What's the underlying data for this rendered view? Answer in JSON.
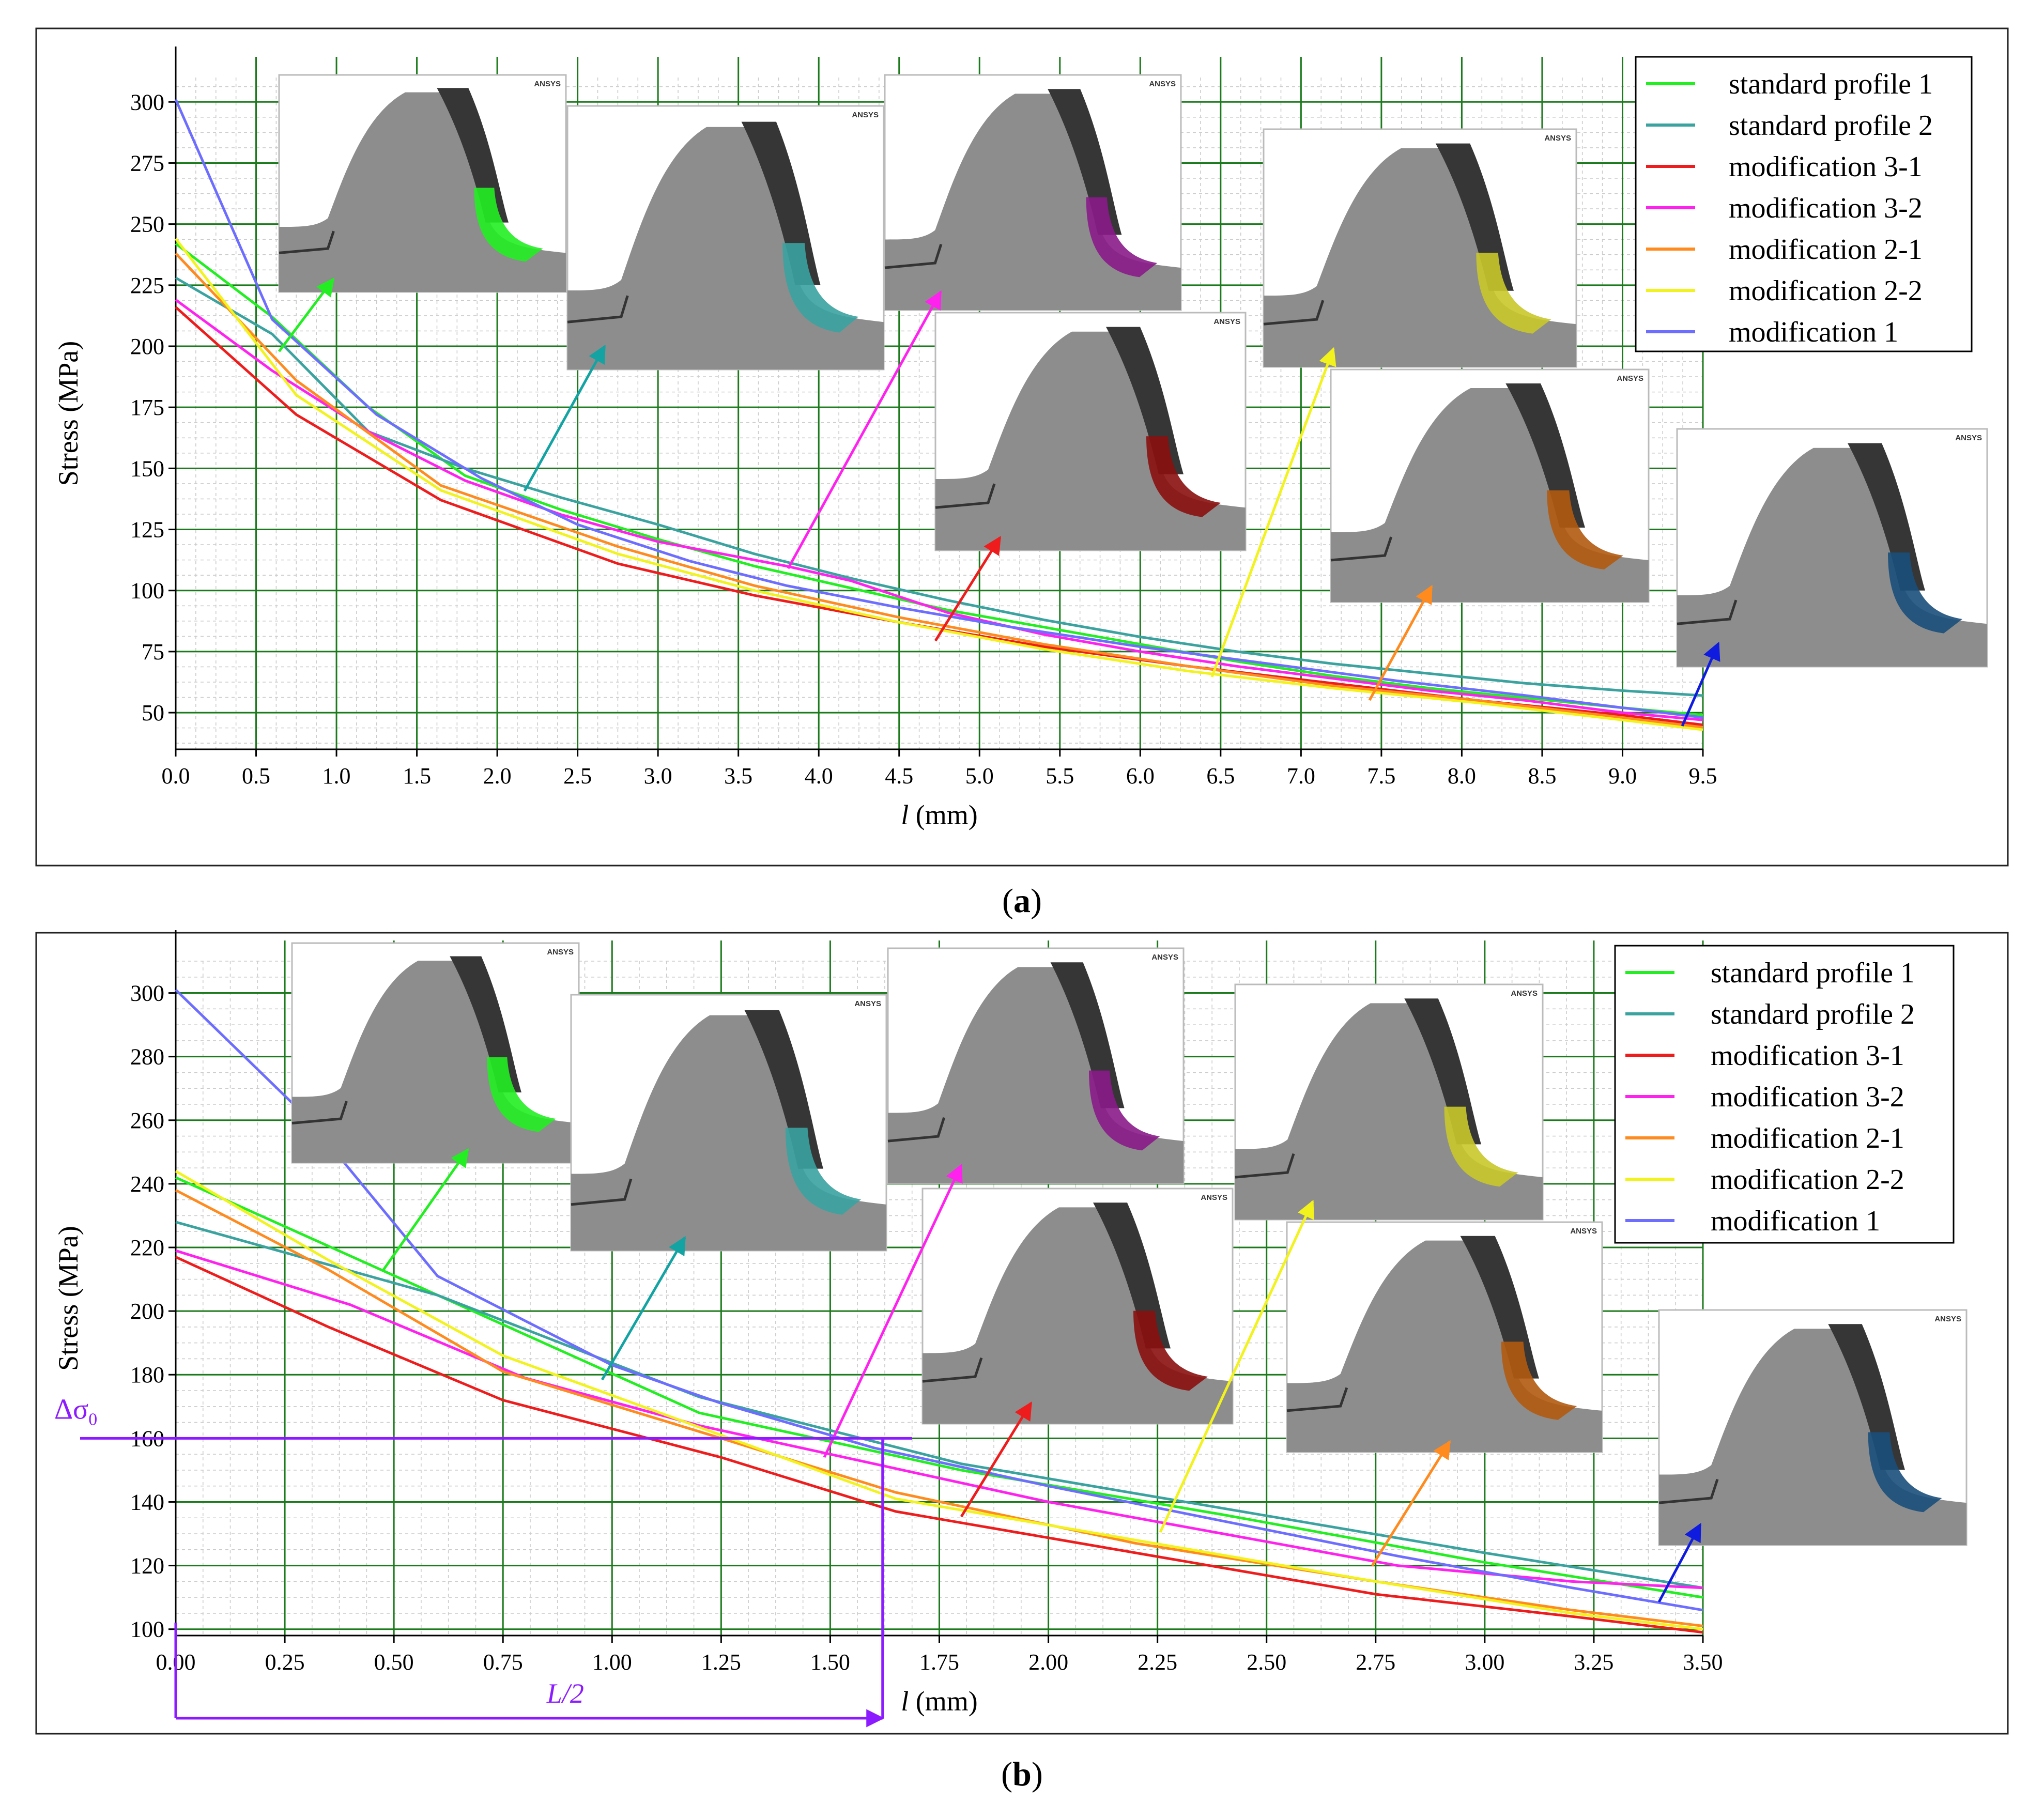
{
  "colors": {
    "standard_profile_1": "#22ee22",
    "standard_profile_2": "#3aa3a0",
    "modification_3_1": "#ee1c1c",
    "modification_3_2": "#ff22ee",
    "modification_2_1": "#ff8a1e",
    "modification_2_2": "#f2f21c",
    "modification_1": "#6d6dff",
    "grid": "#1b7a1b",
    "annotation": "#8c1cff",
    "arrow_standard_profile_2": "#13a3a3"
  },
  "inset_label": "ANSYS",
  "chart_data": [
    {
      "panel": "(a)",
      "panel_letter": "a",
      "type": "line",
      "xlabel_var": "l",
      "xlabel_unit": " (mm)",
      "ylabel": "Stress (MPa)",
      "xlim": [
        0,
        9.5
      ],
      "ylim": [
        35,
        310
      ],
      "xticks": [
        "0.0",
        "0.5",
        "1.0",
        "1.5",
        "2.0",
        "2.5",
        "3.0",
        "3.5",
        "4.0",
        "4.5",
        "5.0",
        "5.5",
        "6.0",
        "6.5",
        "7.0",
        "7.5",
        "8.0",
        "8.5",
        "9.0",
        "9.5"
      ],
      "yticks": [
        50,
        75,
        100,
        125,
        150,
        175,
        200,
        225,
        250,
        275,
        300
      ],
      "legend": [
        "standard profile 1",
        "standard profile 2",
        "modification 3-1",
        "modification 3-2",
        "modification 2-1",
        "modification 2-2",
        "modification 1"
      ],
      "series": [
        {
          "name": "standard profile 1",
          "key": "standard_profile_1",
          "x": [
            0,
            0.6,
            1.2,
            1.8,
            2.4,
            3.0,
            3.6,
            4.2,
            4.8,
            5.4,
            6.0,
            6.6,
            7.2,
            7.8,
            8.4,
            9.0,
            9.5
          ],
          "y": [
            242,
            212,
            175,
            147,
            133,
            121,
            110,
            101,
            92,
            85,
            78,
            71,
            65,
            60,
            56,
            52,
            49
          ]
        },
        {
          "name": "standard profile 2",
          "key": "standard_profile_2",
          "x": [
            0,
            0.6,
            1.2,
            1.8,
            2.4,
            3.0,
            3.6,
            4.2,
            4.8,
            5.4,
            6.0,
            6.6,
            7.2,
            7.8,
            8.4,
            9.0,
            9.5
          ],
          "y": [
            228,
            205,
            165,
            150,
            138,
            127,
            115,
            105,
            96,
            88,
            81,
            75,
            70,
            66,
            62,
            59,
            57
          ]
        },
        {
          "name": "modification 3-1",
          "key": "modification_3_1",
          "x": [
            0,
            0.75,
            1.65,
            2.75,
            3.6,
            4.5,
            5.4,
            6.3,
            7.2,
            8.1,
            9.0,
            9.5
          ],
          "y": [
            216,
            172,
            137,
            111,
            98,
            87,
            77,
            69,
            62,
            55,
            49,
            45
          ]
        },
        {
          "name": "modification 3-2",
          "key": "modification_3_2",
          "x": [
            0,
            0.6,
            1.2,
            1.8,
            2.4,
            3.0,
            3.8,
            4.2,
            4.8,
            5.4,
            6.0,
            6.6,
            7.2,
            7.8,
            8.4,
            9.0,
            9.5
          ],
          "y": [
            219,
            190,
            165,
            145,
            131,
            120,
            110,
            104,
            91,
            82,
            75,
            69,
            64,
            59,
            55,
            50,
            47
          ]
        },
        {
          "name": "modification 2-1",
          "key": "modification_2_1",
          "x": [
            0,
            0.75,
            1.65,
            2.75,
            3.6,
            4.5,
            5.4,
            6.3,
            7.2,
            8.1,
            9.0,
            9.5
          ],
          "y": [
            238,
            186,
            143,
            118,
            102,
            89,
            78,
            69,
            61,
            55,
            48,
            44
          ]
        },
        {
          "name": "modification 2-2",
          "key": "modification_2_2",
          "x": [
            0,
            0.75,
            1.65,
            2.75,
            3.6,
            4.5,
            5.4,
            6.3,
            7.2,
            8.1,
            9.0,
            9.5
          ],
          "y": [
            244,
            180,
            141,
            115,
            100,
            87,
            76,
            67,
            60,
            54,
            47,
            43
          ]
        },
        {
          "name": "modification 1",
          "key": "modification_1",
          "x": [
            0,
            0.6,
            1.25,
            1.9,
            2.5,
            3.2,
            3.8,
            4.5,
            5.2,
            6.0,
            6.8,
            7.6,
            8.4,
            9.0,
            9.5
          ],
          "y": [
            301,
            211,
            172,
            146,
            127,
            112,
            102,
            93,
            85,
            77,
            70,
            63,
            57,
            52,
            48
          ]
        }
      ]
    },
    {
      "panel": "(b)",
      "panel_letter": "b",
      "type": "line",
      "xlabel_var": "l",
      "xlabel_unit": " (mm)",
      "ylabel": "Stress (MPa)",
      "xlim": [
        0,
        3.5
      ],
      "ylim": [
        98,
        310
      ],
      "xticks": [
        "0.00",
        "0.25",
        "0.50",
        "0.75",
        "1.00",
        "1.25",
        "1.50",
        "1.75",
        "2.00",
        "2.25",
        "2.50",
        "2.75",
        "3.00",
        "3.25",
        "3.50"
      ],
      "yticks": [
        100,
        120,
        140,
        160,
        180,
        200,
        220,
        240,
        260,
        280,
        300
      ],
      "legend": [
        "standard profile 1",
        "standard profile 2",
        "modification 3-1",
        "modification 3-2",
        "modification 2-1",
        "modification 2-2",
        "modification 1"
      ],
      "annotations": {
        "delta_sigma_0": 160,
        "half_length_x": 1.62,
        "half_length_label": "L/2"
      },
      "series": [
        {
          "name": "standard profile 1",
          "key": "standard_profile_1",
          "x": [
            0,
            0.6,
            1.2,
            1.8,
            2.4,
            3.0,
            3.5
          ],
          "y": [
            242,
            205,
            168,
            150,
            136,
            121,
            110
          ]
        },
        {
          "name": "standard profile 2",
          "key": "standard_profile_2",
          "x": [
            0,
            0.6,
            1.2,
            1.8,
            2.4,
            3.0,
            3.5
          ],
          "y": [
            228,
            205,
            173,
            152,
            138,
            124,
            113
          ]
        },
        {
          "name": "modification 3-1",
          "key": "modification_3_1",
          "x": [
            0,
            0.35,
            0.75,
            1.25,
            1.65,
            2.2,
            2.75,
            3.2,
            3.5
          ],
          "y": [
            217,
            195,
            172,
            154,
            137,
            124,
            111,
            104,
            99
          ]
        },
        {
          "name": "modification 3-2",
          "key": "modification_3_2",
          "x": [
            0,
            0.4,
            0.8,
            1.2,
            1.6,
            2.0,
            2.4,
            2.8,
            3.2,
            3.5
          ],
          "y": [
            219,
            202,
            179,
            164,
            152,
            140,
            130,
            120,
            115,
            113
          ]
        },
        {
          "name": "modification 2-1",
          "key": "modification_2_1",
          "x": [
            0,
            0.35,
            0.75,
            1.25,
            1.65,
            2.2,
            2.75,
            3.2,
            3.5
          ],
          "y": [
            238,
            213,
            181,
            160,
            143,
            127,
            115,
            106,
            101
          ]
        },
        {
          "name": "modification 2-2",
          "key": "modification_2_2",
          "x": [
            0,
            0.35,
            0.75,
            1.25,
            1.65,
            2.2,
            2.75,
            3.2,
            3.5
          ],
          "y": [
            244,
            216,
            186,
            161,
            141,
            128,
            115,
            105,
            100
          ]
        },
        {
          "name": "modification 1",
          "key": "modification_1",
          "x": [
            0,
            0.3,
            0.6,
            1.0,
            1.25,
            1.6,
            2.0,
            2.4,
            2.8,
            3.2,
            3.5
          ],
          "y": [
            301,
            261,
            211,
            183,
            171,
            157,
            145,
            134,
            123,
            113,
            106
          ]
        }
      ]
    }
  ]
}
